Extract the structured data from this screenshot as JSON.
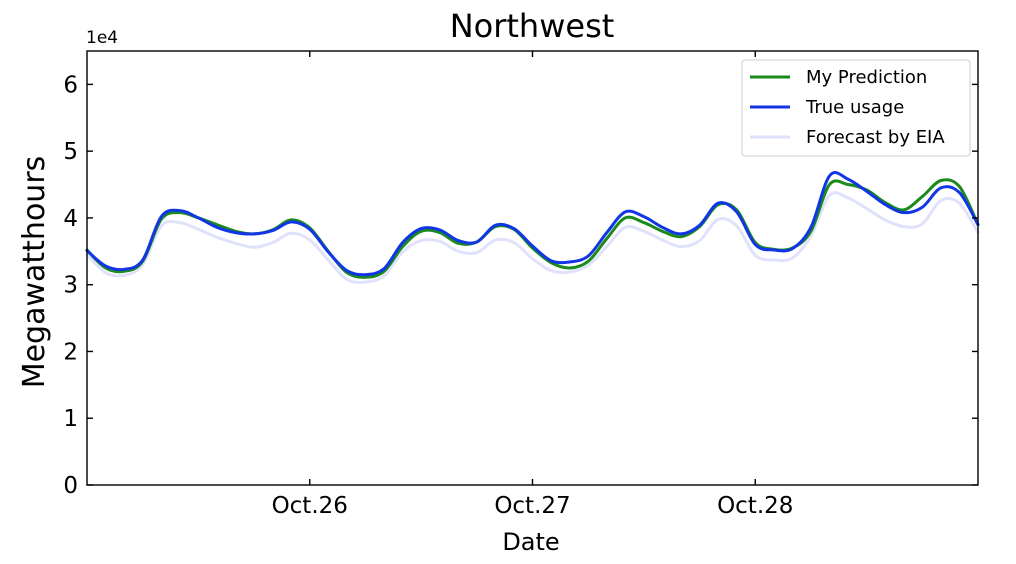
{
  "chart_data": {
    "type": "line",
    "title": "Northwest",
    "xlabel": "Date",
    "ylabel": "Megawatthours",
    "y_multiplier_label": "1e4",
    "ylim": [
      0,
      65000
    ],
    "yticks": [
      0,
      10000,
      20000,
      30000,
      40000,
      50000,
      60000
    ],
    "ytick_labels": [
      "0",
      "1",
      "2",
      "3",
      "4",
      "5",
      "6"
    ],
    "xlim": [
      0,
      96
    ],
    "xticks": [
      24,
      48,
      72
    ],
    "xtick_labels": [
      "Oct.26",
      "Oct.27",
      "Oct.28"
    ],
    "grid": false,
    "legend_position": "top-right",
    "x": [
      0,
      2,
      4,
      6,
      8,
      10,
      12,
      14,
      16,
      18,
      20,
      22,
      24,
      26,
      28,
      30,
      32,
      34,
      36,
      38,
      40,
      42,
      44,
      46,
      48,
      50,
      52,
      54,
      56,
      58,
      60,
      62,
      64,
      66,
      68,
      70,
      72,
      74,
      76,
      78,
      80,
      82,
      84,
      86,
      88,
      90,
      92,
      94,
      96
    ],
    "series": [
      {
        "name": "My Prediction",
        "color": "#1a8a1a",
        "values": [
          35200,
          32500,
          32000,
          33500,
          39800,
          40800,
          40000,
          39000,
          38000,
          37600,
          38200,
          39700,
          38500,
          35000,
          31800,
          31100,
          32000,
          35700,
          38000,
          37800,
          36200,
          36400,
          38700,
          38300,
          35500,
          33300,
          32500,
          33500,
          36900,
          40000,
          39300,
          38000,
          37200,
          38700,
          42000,
          41200,
          36300,
          35300,
          35500,
          38000,
          45000,
          45000,
          44200,
          42300,
          41200,
          43200,
          45600,
          44700,
          39000
        ]
      },
      {
        "name": "True usage",
        "color": "#1236e6",
        "values": [
          35100,
          32800,
          32300,
          33700,
          40200,
          41100,
          40000,
          38600,
          37800,
          37600,
          38100,
          39400,
          38300,
          34900,
          32100,
          31500,
          32400,
          36300,
          38400,
          38200,
          36600,
          36400,
          38900,
          38400,
          35800,
          33600,
          33400,
          34300,
          37800,
          40900,
          40200,
          38600,
          37600,
          38900,
          42200,
          40900,
          36000,
          35200,
          35400,
          38600,
          46300,
          45800,
          44000,
          42000,
          40800,
          41600,
          44500,
          43800,
          39000
        ]
      },
      {
        "name": "Forecast by EIA",
        "color": "#dfe2fa",
        "values": [
          34500,
          31800,
          31400,
          33000,
          38800,
          39300,
          38300,
          37100,
          36200,
          35600,
          36300,
          37700,
          36700,
          33700,
          30800,
          30400,
          31300,
          34900,
          36600,
          36500,
          35000,
          34800,
          36700,
          36300,
          33900,
          32100,
          31900,
          32900,
          35700,
          38600,
          38000,
          36700,
          35700,
          36600,
          39800,
          38800,
          34400,
          33700,
          34000,
          37300,
          43400,
          43000,
          41400,
          39700,
          38700,
          39100,
          42600,
          42200,
          37800
        ]
      }
    ]
  }
}
